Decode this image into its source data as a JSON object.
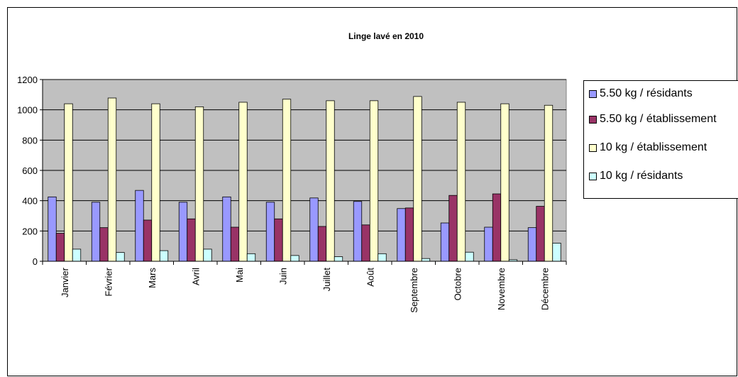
{
  "chart_data": {
    "type": "bar",
    "title": "Linge lavé en 2010",
    "categories": [
      "Janvier",
      "Février",
      "Mars",
      "Avril",
      "Mai",
      "Juin",
      "Juillet",
      "Août",
      "Septembre",
      "Octobre",
      "Novembre",
      "Décembre"
    ],
    "series": [
      {
        "name": "5.50 kg / résidants",
        "color": "#9999ff",
        "values": [
          425,
          390,
          468,
          390,
          425,
          390,
          418,
          395,
          348,
          253,
          225,
          222
        ]
      },
      {
        "name": "5.50 kg / établissement",
        "color": "#993366",
        "values": [
          185,
          222,
          272,
          280,
          225,
          280,
          230,
          240,
          352,
          435,
          445,
          363
        ]
      },
      {
        "name": "10 kg / établissement",
        "color": "#ffffcc",
        "values": [
          1040,
          1078,
          1040,
          1020,
          1050,
          1070,
          1060,
          1060,
          1088,
          1050,
          1040,
          1030
        ]
      },
      {
        "name": "10 kg / résidants",
        "color": "#ccffff",
        "values": [
          80,
          58,
          70,
          80,
          50,
          38,
          30,
          50,
          18,
          60,
          10,
          120
        ]
      }
    ],
    "ylim": [
      0,
      1200
    ],
    "yticks": [
      0,
      200,
      400,
      600,
      800,
      1000,
      1200
    ],
    "grid": true,
    "plot_background": "#c0c0c0",
    "legend_position": "right"
  }
}
